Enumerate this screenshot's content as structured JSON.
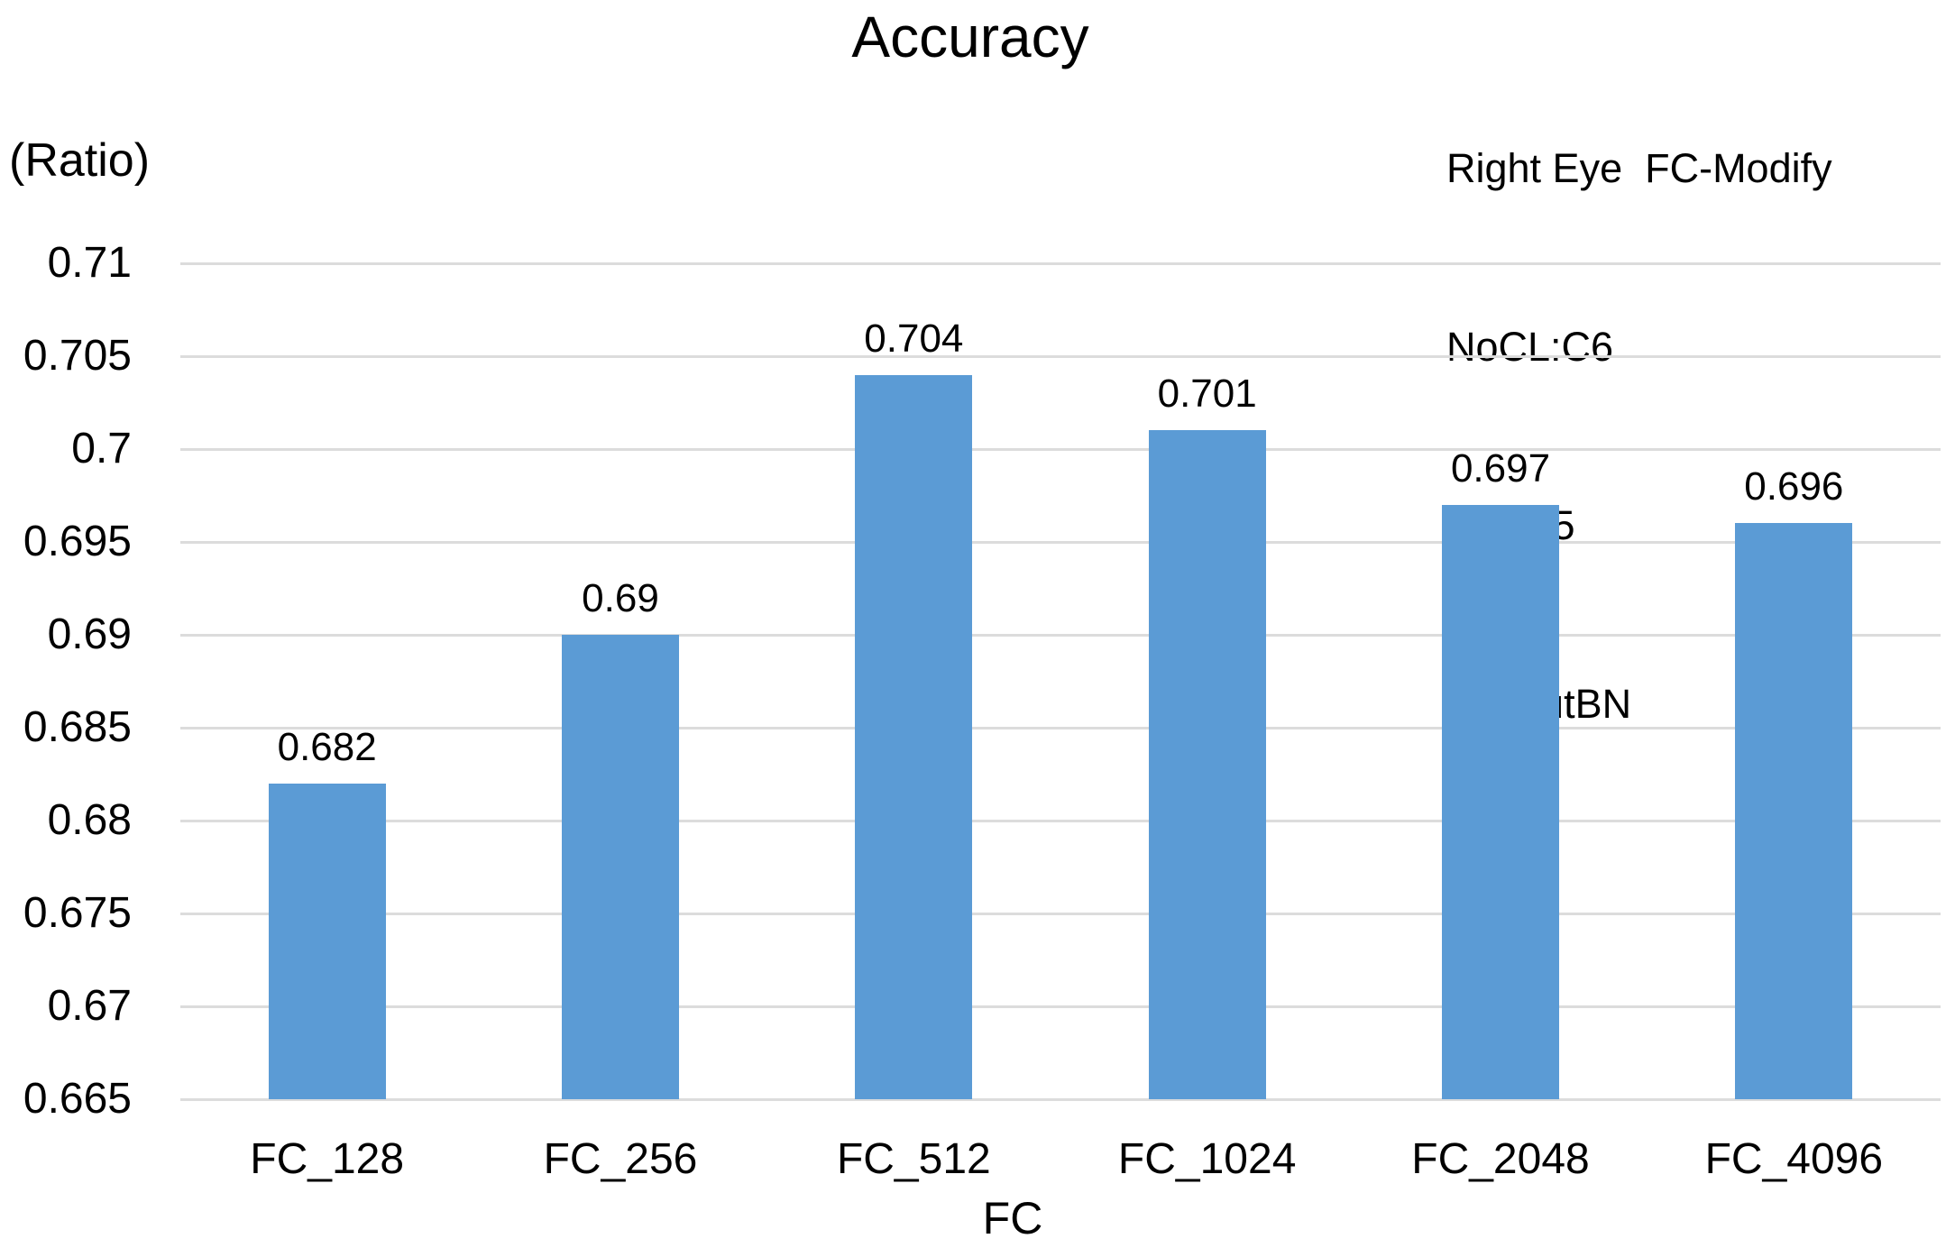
{
  "chart_data": {
    "type": "bar",
    "title": "Accuracy",
    "xlabel": "FC",
    "ylabel": "(Ratio)",
    "categories": [
      "FC_128",
      "FC_256",
      "FC_512",
      "FC_1024",
      "FC_2048",
      "FC_4096"
    ],
    "values": [
      0.682,
      0.69,
      0.704,
      0.701,
      0.697,
      0.696
    ],
    "data_labels": [
      "0.682",
      "0.69",
      "0.704",
      "0.701",
      "0.697",
      "0.696"
    ],
    "ytick_labels": [
      "0.71",
      "0.705",
      "0.7",
      "0.695",
      "0.69",
      "0.685",
      "0.68",
      "0.675",
      "0.67",
      "0.665"
    ],
    "ylim": [
      0.665,
      0.71
    ],
    "ytick_step": 0.005,
    "grid": true,
    "legend": "none",
    "annotation": {
      "lines": [
        "Right Eye  FC-Modify",
        "NoCL:C6",
        "Lr:1e-5",
        "withoutBN"
      ]
    },
    "colors": {
      "bar": "#5B9BD5",
      "gridline": "#DCDCDC",
      "text": "#000000",
      "background": "#FFFFFF"
    }
  }
}
